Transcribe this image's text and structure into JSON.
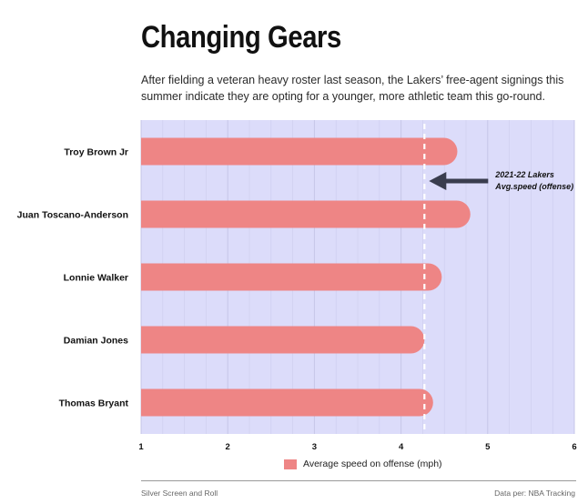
{
  "title": "Changing Gears",
  "subtitle": "After fielding a veteran heavy roster last season, the Lakers’ free-agent signings this summer indicate they are opting for a younger, more athletic team this go-round.",
  "colors": {
    "bar": "#ee8585",
    "plot_background": "#dcdcfa",
    "gridline": "#c3c3e6",
    "reference_line": "#ffffff",
    "arrow": "#3a3d4e"
  },
  "chart_data": {
    "type": "bar",
    "orientation": "horizontal",
    "categories": [
      "Troy Brown Jr",
      "Juan Toscano-Anderson",
      "Lonnie Walker",
      "Damian Jones",
      "Thomas Bryant"
    ],
    "series": [
      {
        "name": "Average speed on offense (mph)",
        "values": [
          4.65,
          4.8,
          4.47,
          4.27,
          4.37
        ]
      }
    ],
    "xlim": [
      1,
      6
    ],
    "x_ticks": [
      "1",
      "2",
      "3",
      "4",
      "5",
      "6"
    ],
    "grid": true,
    "reference_line": {
      "value": 4.27,
      "label_line1": "2021-22 Lakers",
      "label_line2": "Avg.speed (offense)"
    },
    "legend": {
      "position": "bottom-center",
      "label": "Average speed on offense (mph)"
    }
  },
  "footer": {
    "source_left": "Silver Screen and Roll",
    "source_right": "Data per: NBA Tracking"
  }
}
